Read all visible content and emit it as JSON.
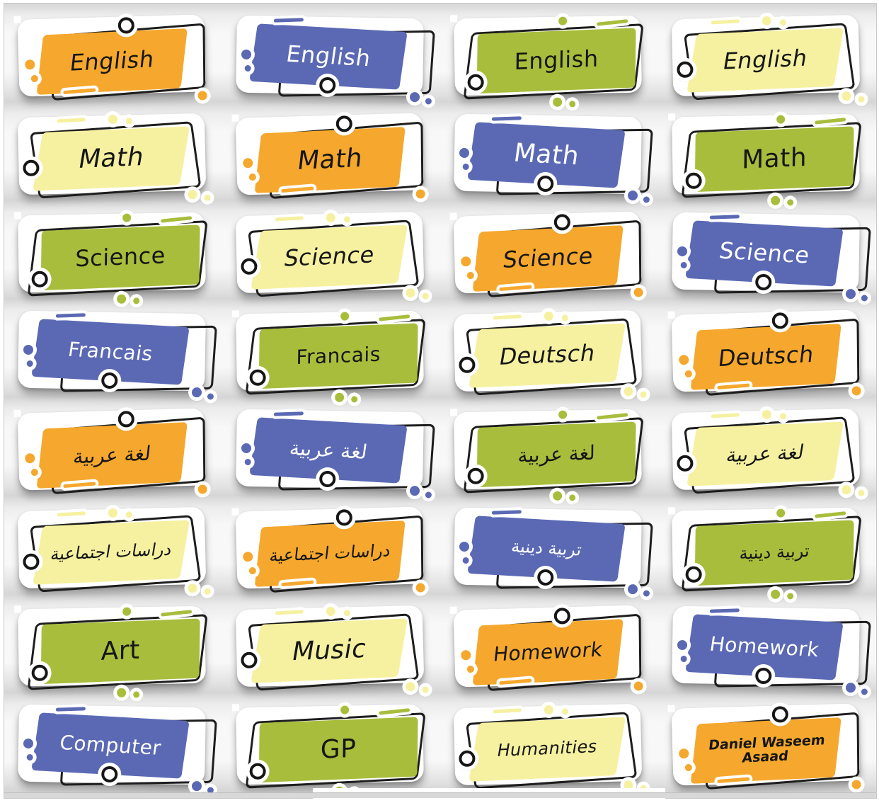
{
  "sheet": {
    "colors": {
      "orange": "#F5A82D",
      "blue": "#5B69B4",
      "green": "#A9BD3C",
      "pale_yellow": "#F6F1A0",
      "outline_black": "#1d1d1d",
      "text_dark": "#161616",
      "text_light": "#ffffff",
      "sticker_white": "#ffffff"
    },
    "rows": [
      [
        {
          "label": "English",
          "variant": "orange"
        },
        {
          "label": "English",
          "variant": "blue"
        },
        {
          "label": "English",
          "variant": "green"
        },
        {
          "label": "English",
          "variant": "pale_yellow"
        }
      ],
      [
        {
          "label": "Math",
          "variant": "pale_yellow"
        },
        {
          "label": "Math",
          "variant": "orange"
        },
        {
          "label": "Math",
          "variant": "blue"
        },
        {
          "label": "Math",
          "variant": "green"
        }
      ],
      [
        {
          "label": "Science",
          "variant": "green"
        },
        {
          "label": "Science",
          "variant": "pale_yellow"
        },
        {
          "label": "Science",
          "variant": "orange"
        },
        {
          "label": "Science",
          "variant": "blue"
        }
      ],
      [
        {
          "label": "Francais",
          "variant": "blue"
        },
        {
          "label": "Francais",
          "variant": "green"
        },
        {
          "label": "Deutsch",
          "variant": "pale_yellow"
        },
        {
          "label": "Deutsch",
          "variant": "orange"
        }
      ],
      [
        {
          "label": "لغة عربية",
          "variant": "orange"
        },
        {
          "label": "لغة عربية",
          "variant": "blue"
        },
        {
          "label": "لغة عربية",
          "variant": "green"
        },
        {
          "label": "لغة عربية",
          "variant": "pale_yellow"
        }
      ],
      [
        {
          "label": "دراسات اجتماعية",
          "variant": "pale_yellow"
        },
        {
          "label": "دراسات اجتماعية",
          "variant": "orange"
        },
        {
          "label": "تربية دينية",
          "variant": "blue"
        },
        {
          "label": "تربية دينية",
          "variant": "green"
        }
      ],
      [
        {
          "label": "Art",
          "variant": "green"
        },
        {
          "label": "Music",
          "variant": "pale_yellow"
        },
        {
          "label": "Homework",
          "variant": "orange"
        },
        {
          "label": "Homework",
          "variant": "blue"
        }
      ],
      [
        {
          "label": "Computer",
          "variant": "blue"
        },
        {
          "label": "GP",
          "variant": "green"
        },
        {
          "label": "Humanities",
          "variant": "pale_yellow"
        },
        {
          "label": "Daniel Waseem Asaad",
          "variant": "orange"
        }
      ]
    ]
  }
}
